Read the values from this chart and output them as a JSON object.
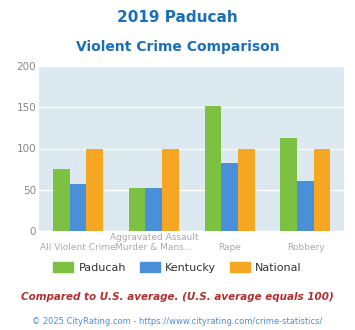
{
  "title_line1": "2019 Paducah",
  "title_line2": "Violent Crime Comparison",
  "title_color": "#1a6fba",
  "top_labels": [
    "",
    "Aggravated Assault",
    "",
    ""
  ],
  "bot_labels": [
    "All Violent Crime",
    "Murder & Mans...",
    "Rape",
    "Robbery"
  ],
  "paducah_values": [
    75,
    52,
    152,
    113
  ],
  "kentucky_values": [
    57,
    52,
    82,
    61
  ],
  "national_values": [
    100,
    100,
    100,
    100
  ],
  "paducah_color": "#7dc143",
  "kentucky_color": "#4a90d9",
  "national_color": "#f5a623",
  "ylim": [
    0,
    200
  ],
  "yticks": [
    0,
    50,
    100,
    150,
    200
  ],
  "plot_bg_color": "#dce9f0",
  "grid_color": "#ffffff",
  "footnote1": "Compared to U.S. average. (U.S. average equals 100)",
  "footnote2": "© 2025 CityRating.com - https://www.cityrating.com/crime-statistics/",
  "footnote1_color": "#b03030",
  "footnote2_color": "#4a90d9",
  "legend_labels": [
    "Paducah",
    "Kentucky",
    "National"
  ],
  "legend_colors": [
    "#7dc143",
    "#4a90d9",
    "#f5a623"
  ],
  "label_color": "#aaaaaa",
  "ytick_color": "#888888"
}
